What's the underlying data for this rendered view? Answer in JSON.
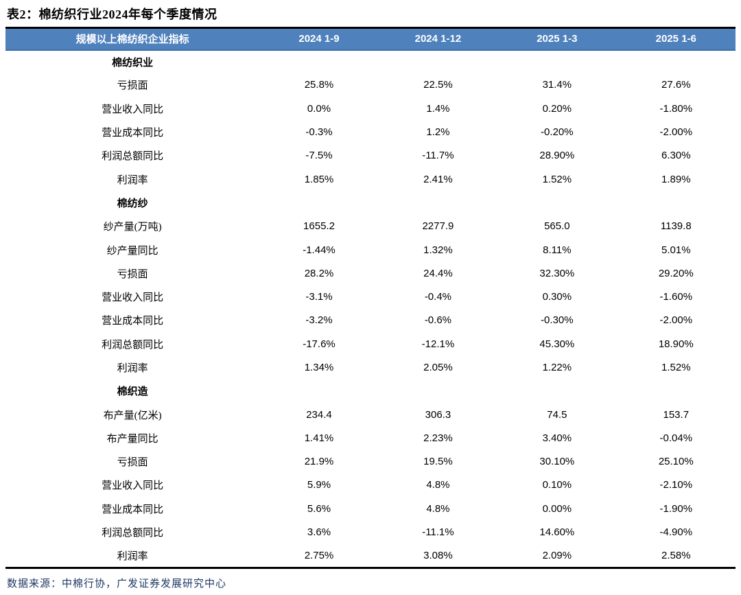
{
  "title": "表2：棉纺织行业2024年每个季度情况",
  "table": {
    "header": [
      "规模以上棉纺织企业指标",
      "2024 1-9",
      "2024 1-12",
      "2025 1-3",
      "2025 1-6"
    ],
    "sections": [
      {
        "name": "棉纺织业",
        "rows": [
          {
            "label": "亏损面",
            "values": [
              "25.8%",
              "22.5%",
              "31.4%",
              "27.6%"
            ]
          },
          {
            "label": "营业收入同比",
            "values": [
              "0.0%",
              "1.4%",
              "0.20%",
              "-1.80%"
            ]
          },
          {
            "label": "营业成本同比",
            "values": [
              "-0.3%",
              "1.2%",
              "-0.20%",
              "-2.00%"
            ]
          },
          {
            "label": "利润总额同比",
            "values": [
              "-7.5%",
              "-11.7%",
              "28.90%",
              "6.30%"
            ]
          },
          {
            "label": "利润率",
            "values": [
              "1.85%",
              "2.41%",
              "1.52%",
              "1.89%"
            ]
          }
        ]
      },
      {
        "name": "棉纺纱",
        "rows": [
          {
            "label": "纱产量(万吨)",
            "values": [
              "1655.2",
              "2277.9",
              "565.0",
              "1139.8"
            ]
          },
          {
            "label": "纱产量同比",
            "values": [
              "-1.44%",
              "1.32%",
              "8.11%",
              "5.01%"
            ]
          },
          {
            "label": "亏损面",
            "values": [
              "28.2%",
              "24.4%",
              "32.30%",
              "29.20%"
            ]
          },
          {
            "label": "营业收入同比",
            "values": [
              "-3.1%",
              "-0.4%",
              "0.30%",
              "-1.60%"
            ]
          },
          {
            "label": "营业成本同比",
            "values": [
              "-3.2%",
              "-0.6%",
              "-0.30%",
              "-2.00%"
            ]
          },
          {
            "label": "利润总额同比",
            "values": [
              "-17.6%",
              "-12.1%",
              "45.30%",
              "18.90%"
            ]
          },
          {
            "label": "利润率",
            "values": [
              "1.34%",
              "2.05%",
              "1.22%",
              "1.52%"
            ]
          }
        ]
      },
      {
        "name": "棉织造",
        "rows": [
          {
            "label": "布产量(亿米)",
            "values": [
              "234.4",
              "306.3",
              "74.5",
              "153.7"
            ]
          },
          {
            "label": "布产量同比",
            "values": [
              "1.41%",
              "2.23%",
              "3.40%",
              "-0.04%"
            ]
          },
          {
            "label": "亏损面",
            "values": [
              "21.9%",
              "19.5%",
              "30.10%",
              "25.10%"
            ]
          },
          {
            "label": "营业收入同比",
            "values": [
              "5.9%",
              "4.8%",
              "0.10%",
              "-2.10%"
            ]
          },
          {
            "label": "营业成本同比",
            "values": [
              "5.6%",
              "4.8%",
              "0.00%",
              "-1.90%"
            ]
          },
          {
            "label": "利润总额同比",
            "values": [
              "3.6%",
              "-11.1%",
              "14.60%",
              "-4.90%"
            ]
          },
          {
            "label": "利润率",
            "values": [
              "2.75%",
              "3.08%",
              "2.09%",
              "2.58%"
            ]
          }
        ]
      }
    ]
  },
  "source": "数据来源：中棉行协，广发证券发展研究中心",
  "colors": {
    "header_bg": "#4F81BD",
    "header_edge": "#3C6DA9",
    "header_text": "#FFFFFF",
    "border": "#000000",
    "source_text": "#1F3864",
    "body_text": "#000000"
  }
}
